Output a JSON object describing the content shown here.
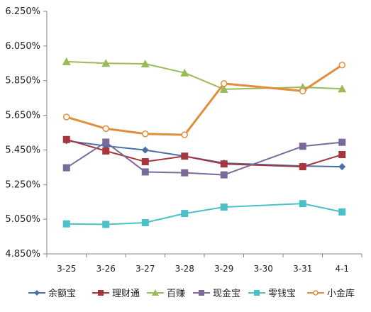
{
  "chart_data": {
    "type": "line",
    "title": "",
    "xlabel": "",
    "ylabel": "",
    "categories": [
      "3-25",
      "3-26",
      "3-27",
      "3-28",
      "3-29",
      "3-30",
      "3-31",
      "4-1"
    ],
    "yticks": [
      "4.850%",
      "5.050%",
      "5.250%",
      "5.450%",
      "5.650%",
      "5.850%",
      "6.050%",
      "6.250%"
    ],
    "ylim": [
      4.85,
      6.25
    ],
    "grid": false,
    "legend": "bottom",
    "series": [
      {
        "name": "余额宝",
        "color": "#4A6FA5",
        "marker": "diamond",
        "values": [
          5.503,
          5.473,
          5.449,
          5.414,
          5.374,
          null,
          5.357,
          5.353
        ]
      },
      {
        "name": "理财通",
        "color": "#A6373F",
        "marker": "square",
        "values": [
          5.51,
          5.444,
          5.382,
          5.414,
          5.369,
          null,
          5.353,
          5.423
        ]
      },
      {
        "name": "百赚",
        "color": "#9BBB59",
        "marker": "triangle",
        "values": [
          5.96,
          5.95,
          5.947,
          5.895,
          5.8,
          null,
          5.812,
          5.803
        ]
      },
      {
        "name": "现金宝",
        "color": "#7A6A9B",
        "marker": "square",
        "values": [
          5.347,
          5.495,
          5.323,
          5.318,
          5.306,
          null,
          5.471,
          5.494
        ]
      },
      {
        "name": "零钱宝",
        "color": "#4BC0C8",
        "marker": "square",
        "values": [
          5.023,
          5.02,
          5.03,
          5.083,
          5.12,
          null,
          5.14,
          5.092
        ]
      },
      {
        "name": "小金库",
        "color": "#E08D3C",
        "marker": "circle",
        "values": [
          5.64,
          5.573,
          5.543,
          5.537,
          5.833,
          null,
          5.79,
          5.94
        ]
      }
    ]
  }
}
